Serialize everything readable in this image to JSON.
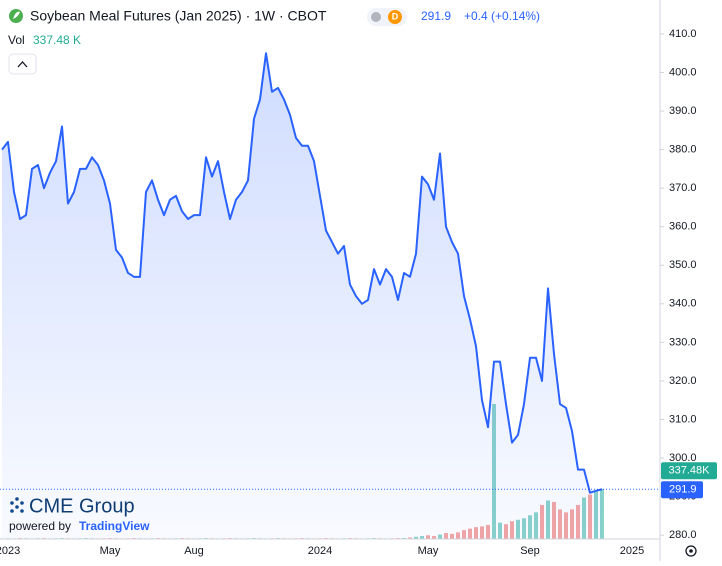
{
  "chart_data": {
    "type": "line",
    "title": "Soybean Meal Futures (Jan 2025) · 1W · CBOT",
    "interval_badge": "D",
    "change": "+0.4 (+0.14%)",
    "volume_title": "Vol",
    "volume_label": "337.48 K",
    "volume_tag": "337.48K",
    "brand": "CME Group",
    "powered_by": "powered by",
    "powered_brand": "TradingView",
    "categories": [
      null,
      "2023",
      null,
      null,
      null,
      null,
      null,
      null,
      null,
      null,
      null,
      null,
      null,
      null,
      null,
      null,
      null,
      null,
      "May",
      null,
      null,
      null,
      null,
      null,
      null,
      null,
      null,
      null,
      null,
      null,
      null,
      null,
      "Aug",
      null,
      null,
      null,
      null,
      null,
      null,
      null,
      null,
      null,
      null,
      null,
      null,
      null,
      null,
      null,
      null,
      null,
      null,
      null,
      null,
      "2024",
      null,
      null,
      null,
      null,
      null,
      null,
      null,
      null,
      null,
      null,
      null,
      null,
      null,
      null,
      null,
      null,
      null,
      "May",
      null,
      null,
      null,
      null,
      null,
      null,
      null,
      null,
      null,
      null,
      null,
      null,
      null,
      null,
      null,
      null,
      "Sep",
      null,
      null,
      null,
      null,
      null,
      null,
      null,
      null,
      null,
      null,
      null,
      null,
      null,
      null,
      null,
      null,
      "2025"
    ],
    "series": [
      {
        "name": "Price",
        "color": "#2962ff",
        "values": [
          380,
          382,
          369,
          362,
          363,
          375,
          376,
          370,
          374,
          377,
          386,
          366,
          369,
          375,
          375,
          378,
          376,
          372,
          366,
          354,
          352,
          348,
          347,
          347,
          369,
          372,
          367,
          363,
          367,
          368,
          364,
          362,
          363,
          363,
          378,
          373,
          377,
          369,
          362,
          367,
          369,
          372,
          388,
          393,
          405,
          395,
          396,
          393,
          389,
          383,
          381,
          381,
          377,
          368,
          359,
          356,
          353,
          355,
          345,
          342,
          340,
          341,
          349,
          345,
          349,
          347,
          341,
          348,
          347,
          353,
          373,
          371,
          367,
          379,
          360,
          356,
          353,
          342,
          336,
          329,
          315,
          308,
          325,
          325,
          314,
          304,
          306,
          314,
          326,
          326,
          320,
          344,
          327,
          314,
          313,
          307,
          297,
          297,
          291,
          291.5,
          291.9,
          null,
          null,
          null,
          null,
          null
        ]
      },
      {
        "name": "Volume",
        "up_color": "#8ad3cb",
        "down_color": "#f5a6a4",
        "values": [
          4,
          5,
          4,
          6,
          5,
          4,
          5,
          6,
          4,
          5,
          6,
          5,
          4,
          5,
          6,
          5,
          4,
          5,
          6,
          5,
          4,
          5,
          6,
          5,
          4,
          5,
          6,
          5,
          4,
          5,
          6,
          5,
          4,
          5,
          6,
          5,
          4,
          5,
          6,
          5,
          4,
          5,
          6,
          5,
          4,
          5,
          6,
          5,
          4,
          5,
          6,
          5,
          4,
          5,
          6,
          5,
          4,
          5,
          6,
          5,
          4,
          5,
          6,
          5,
          4,
          5,
          6,
          7,
          10,
          15,
          20,
          25,
          20,
          30,
          40,
          35,
          45,
          60,
          70,
          80,
          85,
          95,
          911,
          110,
          100,
          120,
          130,
          140,
          160,
          180,
          230,
          260,
          250,
          200,
          180,
          200,
          230,
          280,
          300,
          320,
          337.48,
          null,
          null,
          null,
          null,
          null
        ]
      }
    ],
    "ylim": [
      279,
      418.8
    ],
    "yticks": [
      {
        "value": 280,
        "label": "280.0"
      },
      {
        "value": 290,
        "label": "290.0"
      },
      {
        "value": 300,
        "label": "300.0"
      },
      {
        "value": 310,
        "label": "310.0"
      },
      {
        "value": 320,
        "label": "320.0"
      },
      {
        "value": 330,
        "label": "330.0"
      },
      {
        "value": 340,
        "label": "340.0"
      },
      {
        "value": 350,
        "label": "350.0"
      },
      {
        "value": 360,
        "label": "360.0"
      },
      {
        "value": 370,
        "label": "370.0"
      },
      {
        "value": 380,
        "label": "380.0"
      },
      {
        "value": 390,
        "label": "390.0"
      },
      {
        "value": 400,
        "label": "400.0"
      },
      {
        "value": 410,
        "label": "410.0"
      }
    ],
    "grid": false
  }
}
